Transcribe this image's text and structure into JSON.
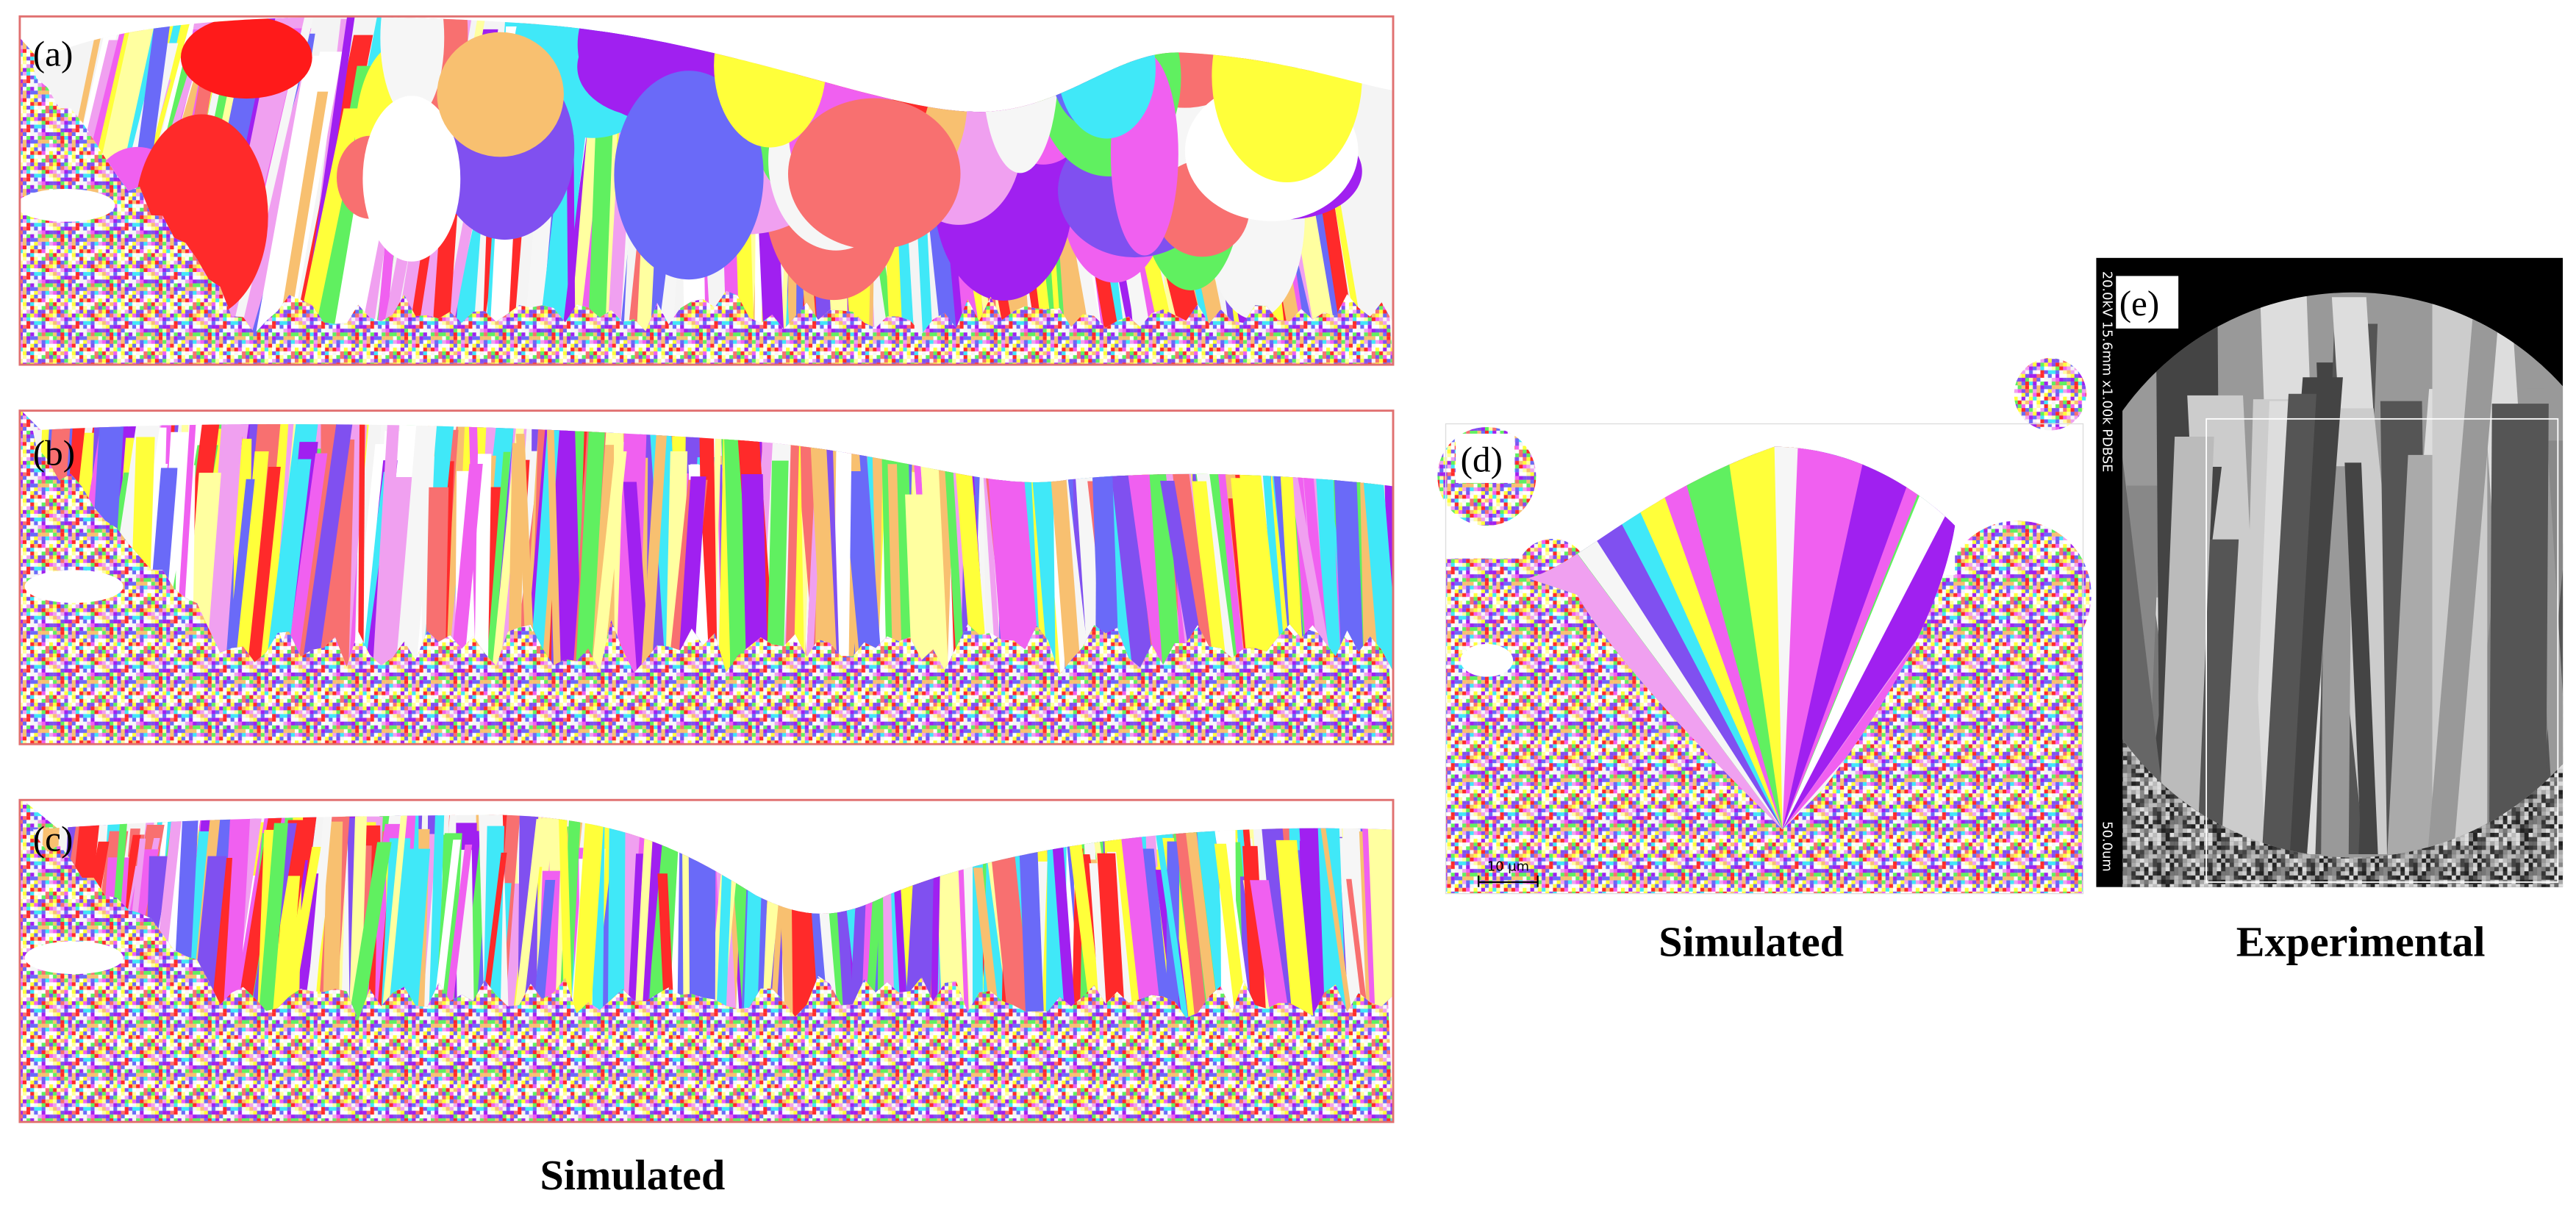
{
  "panels": [
    {
      "label": "(a)"
    },
    {
      "label": "(b)"
    },
    {
      "label": "(c)"
    },
    {
      "label": "(d)",
      "scale_bar": "10 µm"
    },
    {
      "label": "(e)",
      "instrument_text": "20.0kV 15.6mm x1.00k PDBSE",
      "scale_text": "50.0um"
    }
  ],
  "captions": [
    "Simulated",
    "Simulated",
    "Experimental"
  ]
}
